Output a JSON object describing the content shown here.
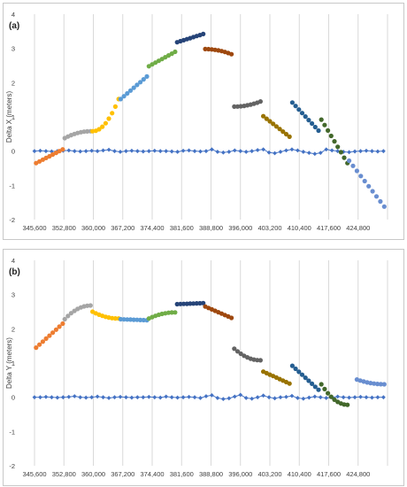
{
  "chart_data": [
    {
      "type": "scatter",
      "panel_label": "(a)",
      "ylabel": "Delta X (meters)",
      "xlabel": "",
      "title": "",
      "ylim": [
        -2,
        4
      ],
      "yticks": [
        "-2",
        "-1",
        "0",
        "1",
        "2",
        "3",
        "4"
      ],
      "xlim": [
        345600,
        432000
      ],
      "xticks": [
        "345,600",
        "352,800",
        "360,000",
        "367,200",
        "374,400",
        "381,600",
        "388,800",
        "396,000",
        "403,200",
        "410,400",
        "417,600",
        "424,800"
      ],
      "grid": "vertical",
      "legend": "none",
      "baseline_color": "#4472c4",
      "baseline_points": [
        [
          345600,
          0.0
        ],
        [
          347000,
          0.01
        ],
        [
          348400,
          0.0
        ],
        [
          349800,
          -0.01
        ],
        [
          351200,
          0.0
        ],
        [
          352600,
          0.01
        ],
        [
          354000,
          0.02
        ],
        [
          355400,
          0.0
        ],
        [
          356800,
          -0.01
        ],
        [
          358200,
          0.0
        ],
        [
          359600,
          0.01
        ],
        [
          361000,
          0.0
        ],
        [
          362400,
          0.02
        ],
        [
          363800,
          0.04
        ],
        [
          365200,
          0.0
        ],
        [
          366600,
          -0.02
        ],
        [
          368000,
          0.0
        ],
        [
          369400,
          0.01
        ],
        [
          370800,
          0.0
        ],
        [
          372200,
          -0.01
        ],
        [
          373600,
          0.0
        ],
        [
          375000,
          0.01
        ],
        [
          376400,
          0.0
        ],
        [
          377800,
          0.0
        ],
        [
          379200,
          -0.01
        ],
        [
          380600,
          -0.02
        ],
        [
          382000,
          0.01
        ],
        [
          383400,
          0.02
        ],
        [
          384800,
          0.0
        ],
        [
          386200,
          -0.01
        ],
        [
          387600,
          0.0
        ],
        [
          389000,
          0.05
        ],
        [
          390400,
          -0.02
        ],
        [
          391800,
          -0.04
        ],
        [
          393200,
          -0.02
        ],
        [
          394600,
          0.02
        ],
        [
          396000,
          0.0
        ],
        [
          397400,
          -0.02
        ],
        [
          398800,
          0.0
        ],
        [
          400200,
          0.03
        ],
        [
          401600,
          0.05
        ],
        [
          403000,
          -0.04
        ],
        [
          404400,
          -0.06
        ],
        [
          405800,
          -0.02
        ],
        [
          407200,
          0.02
        ],
        [
          408600,
          0.05
        ],
        [
          410000,
          0.02
        ],
        [
          411400,
          -0.02
        ],
        [
          412800,
          -0.05
        ],
        [
          414200,
          -0.08
        ],
        [
          415600,
          -0.05
        ],
        [
          417000,
          0.05
        ],
        [
          418400,
          0.02
        ],
        [
          419800,
          0.0
        ],
        [
          421200,
          -0.02
        ],
        [
          422600,
          -0.03
        ],
        [
          424000,
          -0.01
        ],
        [
          425400,
          0.0
        ],
        [
          426800,
          0.01
        ],
        [
          428200,
          0.0
        ],
        [
          429600,
          -0.01
        ],
        [
          431000,
          0.0
        ]
      ],
      "series": [
        {
          "color": "#ed7d31",
          "x_start": 346000,
          "x_end": 352500,
          "y_start": -0.35,
          "y_end": 0.05,
          "n": 9,
          "shape": "linear"
        },
        {
          "color": "#a5a5a5",
          "x_start": 353000,
          "x_end": 359300,
          "y_start": 0.38,
          "y_end": 0.58,
          "n": 9,
          "shape": "ease-out"
        },
        {
          "color": "#ffc000",
          "x_start": 359800,
          "x_end": 366200,
          "y_start": 0.58,
          "y_end": 1.52,
          "n": 9,
          "shape": "ease-in"
        },
        {
          "color": "#5b9bd5",
          "x_start": 366700,
          "x_end": 373100,
          "y_start": 1.52,
          "y_end": 2.18,
          "n": 9,
          "shape": "linear"
        },
        {
          "color": "#70ad47",
          "x_start": 373600,
          "x_end": 380000,
          "y_start": 2.48,
          "y_end": 2.9,
          "n": 9,
          "shape": "linear"
        },
        {
          "color": "#264478",
          "x_start": 380500,
          "x_end": 386900,
          "y_start": 3.18,
          "y_end": 3.42,
          "n": 9,
          "shape": "linear"
        },
        {
          "color": "#9e480e",
          "x_start": 387400,
          "x_end": 393800,
          "y_start": 2.98,
          "y_end": 2.83,
          "n": 9,
          "shape": "ease-in"
        },
        {
          "color": "#636363",
          "x_start": 394500,
          "x_end": 400900,
          "y_start": 1.3,
          "y_end": 1.45,
          "n": 9,
          "shape": "ease-in"
        },
        {
          "color": "#997300",
          "x_start": 401600,
          "x_end": 408000,
          "y_start": 1.02,
          "y_end": 0.42,
          "n": 9,
          "shape": "linear"
        },
        {
          "color": "#255e91",
          "x_start": 408700,
          "x_end": 415100,
          "y_start": 1.42,
          "y_end": 0.6,
          "n": 9,
          "shape": "linear"
        },
        {
          "color": "#43682b",
          "x_start": 415800,
          "x_end": 422200,
          "y_start": 0.92,
          "y_end": -0.35,
          "n": 9,
          "shape": "linear"
        },
        {
          "color": "#698ed0",
          "x_start": 422600,
          "x_end": 431200,
          "y_start": -0.28,
          "y_end": -1.62,
          "n": 10,
          "shape": "linear"
        }
      ]
    },
    {
      "type": "scatter",
      "panel_label": "(b)",
      "ylabel": "Delta Y (meters)",
      "xlabel": "",
      "title": "",
      "ylim": [
        -2,
        4
      ],
      "yticks": [
        "-2",
        "-1",
        "0",
        "1",
        "2",
        "3",
        "4"
      ],
      "xlim": [
        345600,
        432000
      ],
      "xticks": [
        "345,600",
        "352,800",
        "360,000",
        "367,200",
        "374,400",
        "381,600",
        "388,800",
        "396,000",
        "403,200",
        "410,400",
        "417,600",
        "424,800"
      ],
      "grid": "vertical",
      "legend": "none",
      "baseline_color": "#4472c4",
      "baseline_points": [
        [
          345600,
          0.0
        ],
        [
          347000,
          0.0
        ],
        [
          348400,
          0.01
        ],
        [
          349800,
          0.0
        ],
        [
          351200,
          -0.01
        ],
        [
          352600,
          0.0
        ],
        [
          354000,
          0.01
        ],
        [
          355400,
          0.03
        ],
        [
          356800,
          0.0
        ],
        [
          358200,
          -0.01
        ],
        [
          359600,
          0.0
        ],
        [
          361000,
          0.02
        ],
        [
          362400,
          0.0
        ],
        [
          363800,
          -0.02
        ],
        [
          365200,
          0.0
        ],
        [
          366600,
          0.01
        ],
        [
          368000,
          0.0
        ],
        [
          369400,
          -0.01
        ],
        [
          370800,
          0.0
        ],
        [
          372200,
          0.0
        ],
        [
          373600,
          0.01
        ],
        [
          375000,
          0.0
        ],
        [
          376400,
          -0.01
        ],
        [
          377800,
          0.02
        ],
        [
          379200,
          0.0
        ],
        [
          380600,
          -0.01
        ],
        [
          382000,
          0.0
        ],
        [
          383400,
          0.01
        ],
        [
          384800,
          0.0
        ],
        [
          386200,
          -0.02
        ],
        [
          387600,
          0.03
        ],
        [
          389000,
          0.06
        ],
        [
          390400,
          -0.02
        ],
        [
          391800,
          -0.05
        ],
        [
          393200,
          -0.03
        ],
        [
          394600,
          0.02
        ],
        [
          396000,
          0.07
        ],
        [
          397400,
          -0.02
        ],
        [
          398800,
          -0.04
        ],
        [
          400200,
          0.0
        ],
        [
          401600,
          0.05
        ],
        [
          403000,
          0.0
        ],
        [
          404400,
          -0.03
        ],
        [
          405800,
          0.0
        ],
        [
          407200,
          0.01
        ],
        [
          408600,
          0.04
        ],
        [
          410000,
          -0.02
        ],
        [
          411400,
          -0.04
        ],
        [
          412800,
          -0.01
        ],
        [
          414200,
          0.02
        ],
        [
          415600,
          0.0
        ],
        [
          417000,
          -0.02
        ],
        [
          418400,
          0.0
        ],
        [
          419800,
          0.02
        ],
        [
          421200,
          0.0
        ],
        [
          422600,
          -0.01
        ],
        [
          424000,
          0.0
        ],
        [
          425400,
          0.01
        ],
        [
          426800,
          0.0
        ],
        [
          428200,
          -0.01
        ],
        [
          429600,
          0.0
        ],
        [
          431000,
          0.0
        ]
      ],
      "series": [
        {
          "color": "#ed7d31",
          "x_start": 346000,
          "x_end": 352500,
          "y_start": 1.45,
          "y_end": 2.15,
          "n": 9,
          "shape": "linear"
        },
        {
          "color": "#a5a5a5",
          "x_start": 353000,
          "x_end": 359300,
          "y_start": 2.28,
          "y_end": 2.68,
          "n": 9,
          "shape": "ease-out"
        },
        {
          "color": "#ffc000",
          "x_start": 359800,
          "x_end": 366200,
          "y_start": 2.5,
          "y_end": 2.3,
          "n": 9,
          "shape": "ease-out"
        },
        {
          "color": "#5b9bd5",
          "x_start": 366700,
          "x_end": 373100,
          "y_start": 2.28,
          "y_end": 2.25,
          "n": 9,
          "shape": "linear"
        },
        {
          "color": "#70ad47",
          "x_start": 373600,
          "x_end": 380000,
          "y_start": 2.3,
          "y_end": 2.48,
          "n": 9,
          "shape": "ease-out"
        },
        {
          "color": "#264478",
          "x_start": 380500,
          "x_end": 386900,
          "y_start": 2.72,
          "y_end": 2.75,
          "n": 9,
          "shape": "linear"
        },
        {
          "color": "#9e480e",
          "x_start": 387400,
          "x_end": 393800,
          "y_start": 2.65,
          "y_end": 2.32,
          "n": 9,
          "shape": "linear"
        },
        {
          "color": "#636363",
          "x_start": 394500,
          "x_end": 400900,
          "y_start": 1.42,
          "y_end": 1.08,
          "n": 9,
          "shape": "ease-out"
        },
        {
          "color": "#997300",
          "x_start": 401600,
          "x_end": 408000,
          "y_start": 0.75,
          "y_end": 0.4,
          "n": 9,
          "shape": "linear"
        },
        {
          "color": "#255e91",
          "x_start": 408700,
          "x_end": 415100,
          "y_start": 0.92,
          "y_end": 0.22,
          "n": 9,
          "shape": "linear"
        },
        {
          "color": "#43682b",
          "x_start": 415800,
          "x_end": 422200,
          "y_start": 0.38,
          "y_end": -0.22,
          "n": 9,
          "shape": "ease-out"
        },
        {
          "color": "#698ed0",
          "x_start": 424500,
          "x_end": 431200,
          "y_start": 0.52,
          "y_end": 0.38,
          "n": 9,
          "shape": "ease-out"
        }
      ]
    }
  ]
}
